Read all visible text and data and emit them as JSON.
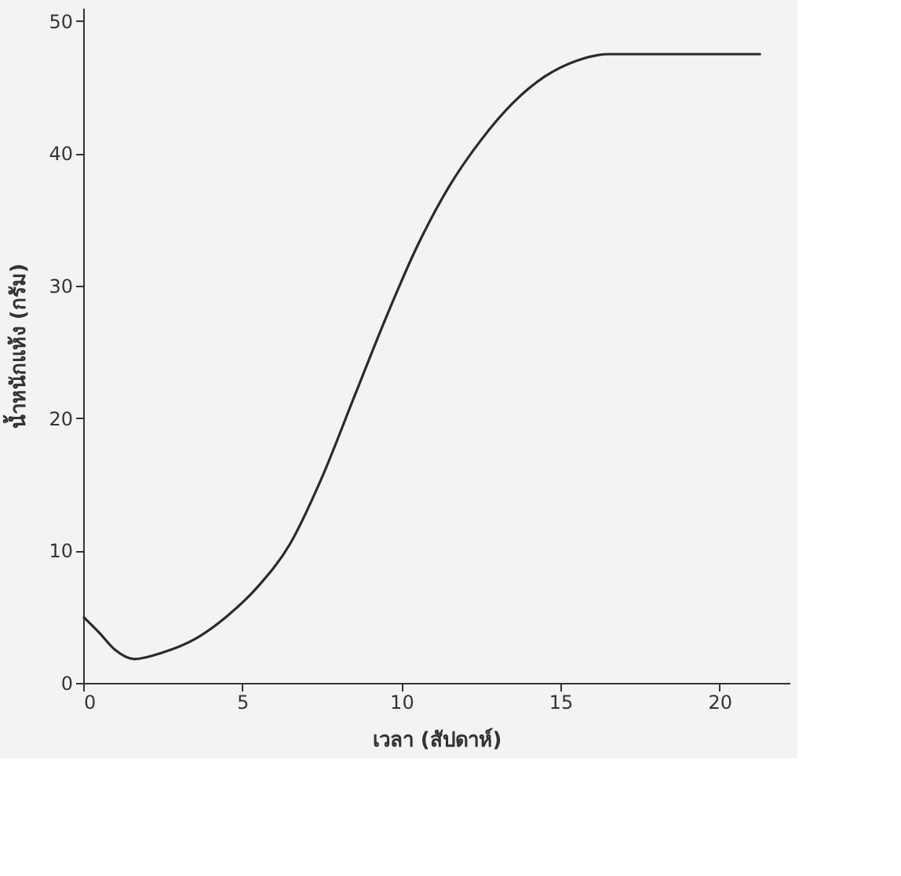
{
  "chart_data": {
    "type": "line",
    "xlabel": "เวลา (สัปดาห์)",
    "ylabel": "น้ำหนักแห้ง (กรัม)",
    "x": [
      0,
      0.5,
      1,
      1.6,
      2.5,
      3.5,
      4.5,
      5.5,
      6.5,
      7.5,
      8.5,
      9.5,
      10.5,
      11.5,
      12.5,
      13.5,
      14.5,
      15.5,
      16.5,
      18,
      21.3
    ],
    "series": [
      {
        "color": "#2b2b2b",
        "values": [
          5.0,
          3.8,
          2.5,
          1.8,
          2.3,
          3.3,
          5.0,
          7.3,
          10.5,
          15.5,
          21.5,
          27.5,
          33,
          37.5,
          41,
          43.8,
          45.8,
          47,
          47.5,
          47.5,
          47.5
        ]
      }
    ],
    "xlim": [
      0,
      22.2
    ],
    "xticks": [
      0,
      5,
      10,
      15,
      20
    ],
    "ylim": [
      0,
      51
    ],
    "yticks": [
      0,
      10,
      20,
      30,
      40,
      50
    ],
    "grid": false,
    "legend": false,
    "marker": "none",
    "line_style": "solid"
  }
}
